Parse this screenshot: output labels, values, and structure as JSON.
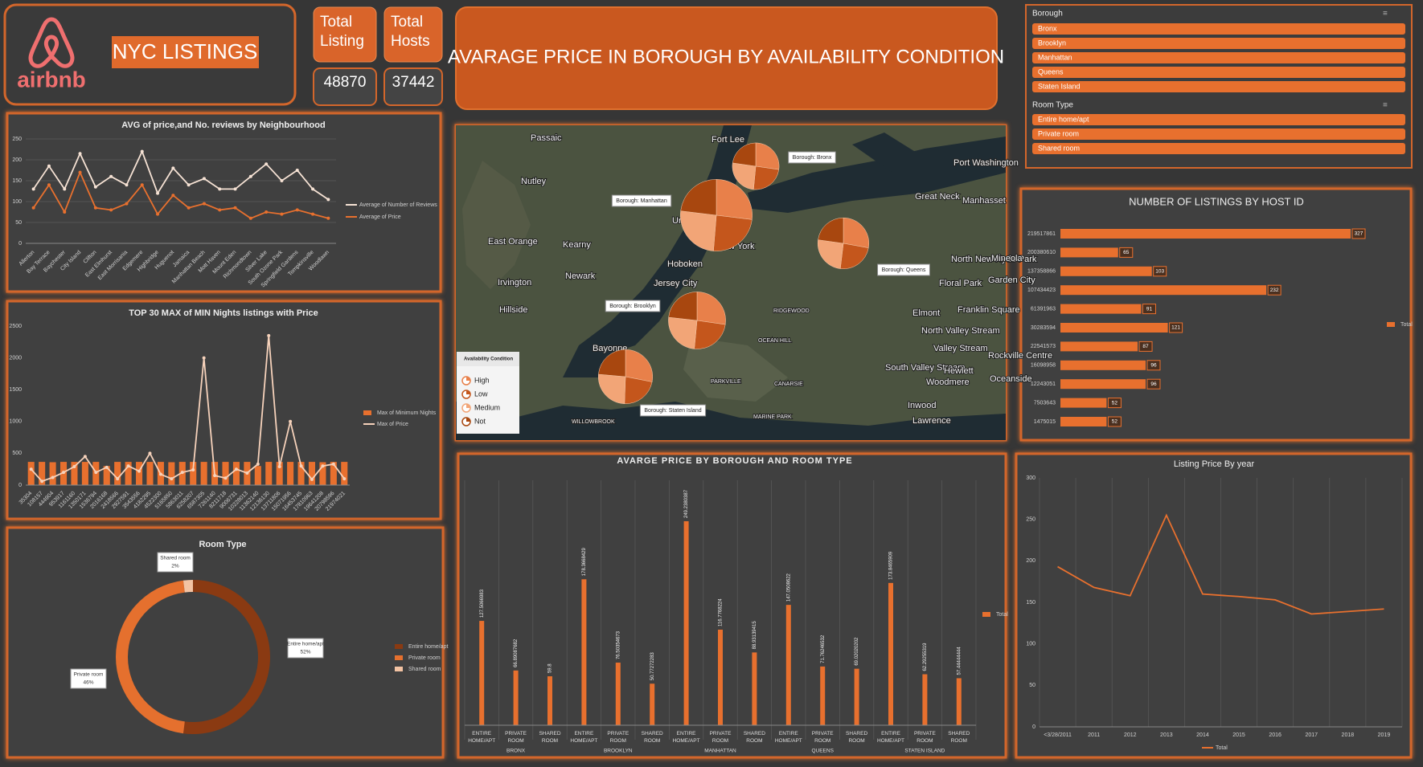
{
  "header": {
    "logo_text": "airbnb",
    "title": "NYC LISTINGS"
  },
  "kpis": [
    {
      "label": "Total Listing",
      "value": 48870
    },
    {
      "label": "Total Hosts",
      "value": 37442
    }
  ],
  "slicers": [
    {
      "title": "Borough",
      "items": [
        "Bronx",
        "Brooklyn",
        "Manhattan",
        "Queens",
        "Staten Island"
      ]
    },
    {
      "title": "Room Type",
      "items": [
        "Entire home/apt",
        "Private room",
        "Shared room"
      ]
    }
  ],
  "chart_data": [
    {
      "type": "line",
      "title": "AVG of price,and No. reviews by Neighbourhood",
      "categories": [
        "Allerton",
        "Bay Terrace",
        "Baychester",
        "City Island",
        "Clifton",
        "East Elmhurst",
        "East Morrisania",
        "Edgemere",
        "Highbridge",
        "Huguenot",
        "Jamaica",
        "Manhattan Beach",
        "Mott Haven",
        "Mount Eden",
        "Richmondtown",
        "Silver Lake",
        "South Ozone Park",
        "Springfield Gardens",
        "Tompkinsville",
        "Woodlawn"
      ],
      "series": [
        {
          "name": "Average of Number of Reviews",
          "color": "#f6e2d4",
          "values": [
            130,
            185,
            130,
            215,
            135,
            160,
            140,
            220,
            120,
            180,
            140,
            155,
            130,
            130,
            160,
            190,
            150,
            175,
            130,
            105
          ]
        },
        {
          "name": "Average of Price",
          "color": "#e8702e",
          "values": [
            85,
            140,
            75,
            170,
            85,
            80,
            95,
            140,
            70,
            115,
            85,
            95,
            80,
            85,
            60,
            75,
            70,
            80,
            70,
            60
          ]
        }
      ],
      "ylim": [
        0,
        250
      ],
      "yticks": [
        0,
        50,
        100,
        150,
        200,
        250
      ],
      "grid": true,
      "legend": "right"
    },
    {
      "type": "bar_line",
      "title": "TOP 30 MAX of MIN Nights listings with Price",
      "categories": [
        "35304",
        "108157",
        "444904",
        "953917",
        "1161160",
        "1350171",
        "1536794",
        "2016168",
        "2418566",
        "2927591",
        "3543556",
        "4182295",
        "4522300",
        "5165850",
        "5863011",
        "6258207",
        "6587305",
        "7261140",
        "8211718",
        "9006731",
        "10228013",
        "11362140",
        "12136130",
        "13711806",
        "15071956",
        "16453745",
        "17810963",
        "19641208",
        "20798596",
        "21974021"
      ],
      "series": [
        {
          "name": "Max of Minimum Nights",
          "kind": "bar",
          "color": "#e8702e",
          "values": [
            365,
            365,
            360,
            365,
            365,
            365,
            365,
            300,
            365,
            365,
            365,
            365,
            365,
            360,
            365,
            365,
            365,
            365,
            365,
            365,
            365,
            300,
            365,
            365,
            365,
            365,
            365,
            360,
            365,
            365
          ]
        },
        {
          "name": "Max of Price",
          "kind": "line",
          "color": "#f6d2bb",
          "values": [
            250,
            60,
            120,
            200,
            290,
            450,
            200,
            280,
            100,
            300,
            220,
            500,
            170,
            100,
            200,
            240,
            2000,
            150,
            110,
            250,
            190,
            330,
            2350,
            290,
            1000,
            300,
            90,
            300,
            330,
            100
          ]
        }
      ],
      "ylim": [
        0,
        2500
      ],
      "yticks": [
        0,
        500,
        1000,
        1500,
        2000,
        2500
      ],
      "grid": false,
      "legend": "right"
    },
    {
      "type": "donut",
      "title": "Room Type",
      "categories": [
        "Entire home/apt",
        "Private room",
        "Shared room"
      ],
      "values": [
        52,
        46,
        2
      ],
      "value_labels": [
        "52%",
        "46%",
        "2%"
      ],
      "colors": [
        "#8a3a12",
        "#e5702e",
        "#f3c3a3"
      ],
      "legend": "right"
    },
    {
      "type": "map_pie",
      "title": "AVARAGE PRICE IN BOROUGH BY AVAILABILITY CONDITION",
      "legend_title": "Availability Condition",
      "series": [
        {
          "name": "High",
          "color": "#e8804a"
        },
        {
          "name": "Low",
          "color": "#c4561c"
        },
        {
          "name": "Medium",
          "color": "#f2a577"
        },
        {
          "name": "Not",
          "color": "#a8470f"
        }
      ],
      "regions": [
        {
          "name": "Borough: Bronx",
          "values": [
            90,
            80,
            85,
            75
          ]
        },
        {
          "name": "Borough: Manhattan",
          "values": [
            210,
            190,
            200,
            180
          ]
        },
        {
          "name": "Borough: Queens",
          "values": [
            110,
            95,
            100,
            90
          ]
        },
        {
          "name": "Borough: Brooklyn",
          "values": [
            135,
            120,
            125,
            115
          ]
        },
        {
          "name": "Borough: Staten Island",
          "values": [
            125,
            100,
            115,
            105
          ]
        }
      ],
      "places": [
        "Passaic",
        "Fort Lee",
        "Nutley",
        "Port Washington",
        "Great Neck",
        "Manhasset",
        "Union City",
        "Kearny",
        "East Orange",
        "New York",
        "Hoboken",
        "Newark",
        "Jersey City",
        "Irvington",
        "Hillside",
        "Bayonne",
        "North New Hyde Park",
        "Mineola",
        "Floral Park",
        "Garden City",
        "Franklin Square",
        "Elmont",
        "North Valley Stream",
        "Valley Stream",
        "Rockville Centre",
        "South Valley Stream",
        "Hewlett",
        "Woodmere",
        "Oceanside",
        "Inwood",
        "Lawrence",
        "RIDGEWOOD",
        "PARKVILLE",
        "CANARSIE",
        "MARINE PARK",
        "WILLOWBROOK",
        "OCEAN HILL"
      ]
    },
    {
      "type": "grouped_bar",
      "title": "AVARGE PRICE BY BOROUGH AND ROOM TYPE",
      "series_name": "Total",
      "color": "#e8702e",
      "groups": [
        {
          "name": "BRONX",
          "categories": [
            "ENTIRE HOME/APT",
            "PRIVATE ROOM",
            "SHARED ROOM"
          ],
          "values": [
            127.5066983,
            66.89087682,
            59.8
          ]
        },
        {
          "name": "BROOKLYN",
          "categories": [
            "ENTIRE HOME/APT",
            "PRIVATE ROOM",
            "SHARED ROOM"
          ],
          "values": [
            178.3668429,
            76.50354673,
            50.77272283
          ]
        },
        {
          "name": "MANHATTAN",
          "categories": [
            "ENTIRE HOME/APT",
            "PRIVATE ROOM",
            "SHARED ROOM"
          ],
          "values": [
            249.2380387,
            116.7768224,
            88.93139415
          ]
        },
        {
          "name": "QUEENS",
          "categories": [
            "ENTIRE HOME/APT",
            "PRIVATE ROOM",
            "SHARED ROOM"
          ],
          "values": [
            147.0508622,
            71.76246532,
            69.02020202
          ]
        },
        {
          "name": "STATEN ISLAND",
          "categories": [
            "ENTIRE HOME/APT",
            "PRIVATE ROOM",
            "SHARED ROOM"
          ],
          "values": [
            173.8465909,
            62.29255319,
            57.44444444
          ]
        }
      ],
      "legend": "right"
    },
    {
      "type": "hbar",
      "title": "NUMBER OF LISTINGS BY HOST ID",
      "series_name": "Total",
      "color": "#e8702e",
      "categories": [
        "219517861",
        "200380610",
        "137358866",
        "107434423",
        "61391963",
        "30283594",
        "22541573",
        "16098958",
        "12243051",
        "7503643",
        "1475015"
      ],
      "values": [
        327,
        65,
        103,
        232,
        91,
        121,
        87,
        96,
        96,
        52,
        52
      ],
      "legend": "right"
    },
    {
      "type": "line",
      "title": "Listing Price By year",
      "categories": [
        "<3/28/2011",
        "2011",
        "2012",
        "2013",
        "2014",
        "2015",
        "2016",
        "2017",
        "2018",
        "2019"
      ],
      "series": [
        {
          "name": "Total",
          "color": "#e8702e",
          "values": [
            193,
            168,
            158,
            255,
            160,
            157,
            153,
            136,
            139,
            142
          ]
        }
      ],
      "ylim": [
        0,
        300
      ],
      "yticks": [
        0,
        50,
        100,
        150,
        200,
        250,
        300
      ],
      "grid": false,
      "vgrid": true,
      "legend": "bottom"
    }
  ]
}
